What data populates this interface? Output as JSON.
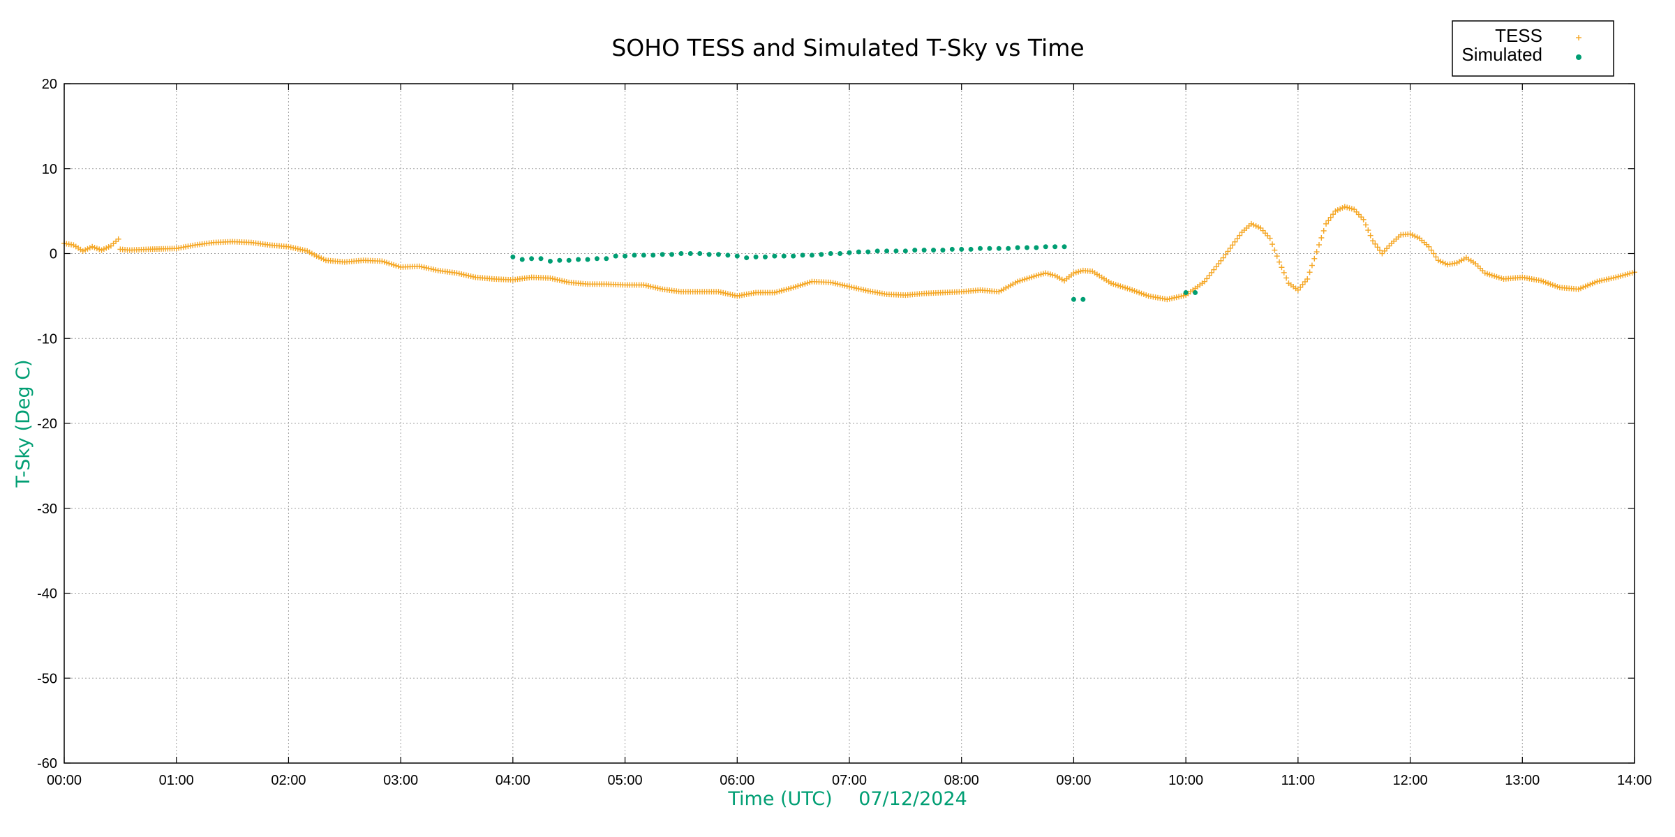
{
  "colors": {
    "tess": "#f5a623",
    "simulated": "#009e73",
    "axis_label": "#009e73"
  },
  "chart_data": {
    "type": "scatter",
    "title": "SOHO TESS and Simulated T-Sky vs Time",
    "xlabel": "Time (UTC)",
    "xlabel_date": "07/12/2024",
    "ylabel": "T-Sky (Deg C)",
    "xlim": [
      "00:00",
      "14:00"
    ],
    "ylim": [
      -60,
      20
    ],
    "x_ticks": [
      "00:00",
      "01:00",
      "02:00",
      "03:00",
      "04:00",
      "05:00",
      "06:00",
      "07:00",
      "08:00",
      "09:00",
      "10:00",
      "11:00",
      "12:00",
      "13:00",
      "14:00"
    ],
    "y_ticks": [
      "20",
      "10",
      "0",
      "-10",
      "-20",
      "-30",
      "-40",
      "-50",
      "-60"
    ],
    "grid": true,
    "legend_position": "top-right",
    "series": [
      {
        "name": "TESS",
        "marker": "plus",
        "x": [
          "00:00",
          "00:05",
          "00:10",
          "00:15",
          "00:20",
          "00:25",
          "00:29",
          "00:30",
          "00:35",
          "00:45",
          "01:00",
          "01:10",
          "01:20",
          "01:30",
          "01:40",
          "01:50",
          "02:00",
          "02:10",
          "02:15",
          "02:20",
          "02:30",
          "02:40",
          "02:50",
          "03:00",
          "03:10",
          "03:20",
          "03:30",
          "03:40",
          "03:50",
          "04:00",
          "04:10",
          "04:20",
          "04:30",
          "04:40",
          "04:50",
          "05:00",
          "05:10",
          "05:20",
          "05:30",
          "05:40",
          "05:50",
          "06:00",
          "06:10",
          "06:20",
          "06:30",
          "06:40",
          "06:50",
          "07:00",
          "07:10",
          "07:20",
          "07:30",
          "07:40",
          "07:50",
          "08:00",
          "08:10",
          "08:20",
          "08:30",
          "08:40",
          "08:45",
          "08:50",
          "08:55",
          "09:00",
          "09:05",
          "09:10",
          "09:20",
          "09:30",
          "09:40",
          "09:50",
          "10:00",
          "10:10",
          "10:20",
          "10:30",
          "10:35",
          "10:40",
          "10:45",
          "10:50",
          "10:55",
          "11:00",
          "11:05",
          "11:10",
          "11:15",
          "11:20",
          "11:25",
          "11:30",
          "11:35",
          "11:40",
          "11:45",
          "11:50",
          "11:55",
          "12:00",
          "12:05",
          "12:10",
          "12:15",
          "12:20",
          "12:25",
          "12:30",
          "12:35",
          "12:40",
          "12:50",
          "13:00",
          "13:10",
          "13:20",
          "13:30",
          "13:40",
          "13:50",
          "14:00"
        ],
        "values": [
          1.2,
          1.0,
          0.3,
          0.8,
          0.4,
          0.9,
          1.7,
          0.5,
          0.4,
          0.5,
          0.6,
          1.0,
          1.3,
          1.4,
          1.3,
          1.0,
          0.8,
          0.3,
          -0.3,
          -0.8,
          -1.0,
          -0.8,
          -0.9,
          -1.6,
          -1.5,
          -2.0,
          -2.3,
          -2.8,
          -3.0,
          -3.1,
          -2.8,
          -2.9,
          -3.4,
          -3.6,
          -3.6,
          -3.7,
          -3.7,
          -4.2,
          -4.5,
          -4.5,
          -4.5,
          -5.0,
          -4.6,
          -4.6,
          -4.0,
          -3.3,
          -3.4,
          -3.9,
          -4.4,
          -4.8,
          -4.9,
          -4.7,
          -4.6,
          -4.5,
          -4.3,
          -4.5,
          -3.3,
          -2.6,
          -2.3,
          -2.6,
          -3.2,
          -2.3,
          -2.0,
          -2.1,
          -3.5,
          -4.2,
          -5.0,
          -5.4,
          -4.9,
          -3.3,
          -0.5,
          2.5,
          3.5,
          3.0,
          1.8,
          -1.0,
          -3.5,
          -4.3,
          -3.0,
          0.2,
          3.5,
          5.0,
          5.5,
          5.2,
          4.0,
          1.5,
          0.0,
          1.2,
          2.2,
          2.3,
          1.8,
          0.8,
          -0.8,
          -1.3,
          -1.1,
          -0.5,
          -1.2,
          -2.3,
          -3.0,
          -2.8,
          -3.2,
          -4.0,
          -4.2,
          -3.3,
          -2.8,
          -2.2
        ]
      },
      {
        "name": "Simulated",
        "marker": "dot",
        "x": [
          "04:00",
          "04:05",
          "04:10",
          "04:15",
          "04:20",
          "04:25",
          "04:30",
          "04:35",
          "04:40",
          "04:45",
          "04:50",
          "04:55",
          "05:00",
          "05:05",
          "05:10",
          "05:15",
          "05:20",
          "05:25",
          "05:30",
          "05:35",
          "05:40",
          "05:45",
          "05:50",
          "05:55",
          "06:00",
          "06:05",
          "06:10",
          "06:15",
          "06:20",
          "06:25",
          "06:30",
          "06:35",
          "06:40",
          "06:45",
          "06:50",
          "06:55",
          "07:00",
          "07:05",
          "07:10",
          "07:15",
          "07:20",
          "07:25",
          "07:30",
          "07:35",
          "07:40",
          "07:45",
          "07:50",
          "07:55",
          "08:00",
          "08:05",
          "08:10",
          "08:15",
          "08:20",
          "08:25",
          "08:30",
          "08:35",
          "08:40",
          "08:45",
          "08:50",
          "08:55",
          "09:00",
          "09:05",
          "10:00",
          "10:05"
        ],
        "values": [
          -0.4,
          -0.7,
          -0.6,
          -0.6,
          -0.9,
          -0.8,
          -0.8,
          -0.7,
          -0.7,
          -0.6,
          -0.6,
          -0.3,
          -0.3,
          -0.2,
          -0.2,
          -0.2,
          -0.1,
          -0.1,
          0.0,
          0.0,
          0.0,
          -0.1,
          -0.1,
          -0.2,
          -0.3,
          -0.5,
          -0.4,
          -0.4,
          -0.3,
          -0.3,
          -0.3,
          -0.2,
          -0.2,
          -0.1,
          0.0,
          0.0,
          0.1,
          0.2,
          0.2,
          0.3,
          0.3,
          0.3,
          0.3,
          0.4,
          0.4,
          0.4,
          0.4,
          0.5,
          0.5,
          0.5,
          0.6,
          0.6,
          0.6,
          0.6,
          0.7,
          0.7,
          0.7,
          0.8,
          0.8,
          0.8,
          -5.4,
          -5.4,
          -4.6,
          -4.6
        ]
      }
    ]
  }
}
